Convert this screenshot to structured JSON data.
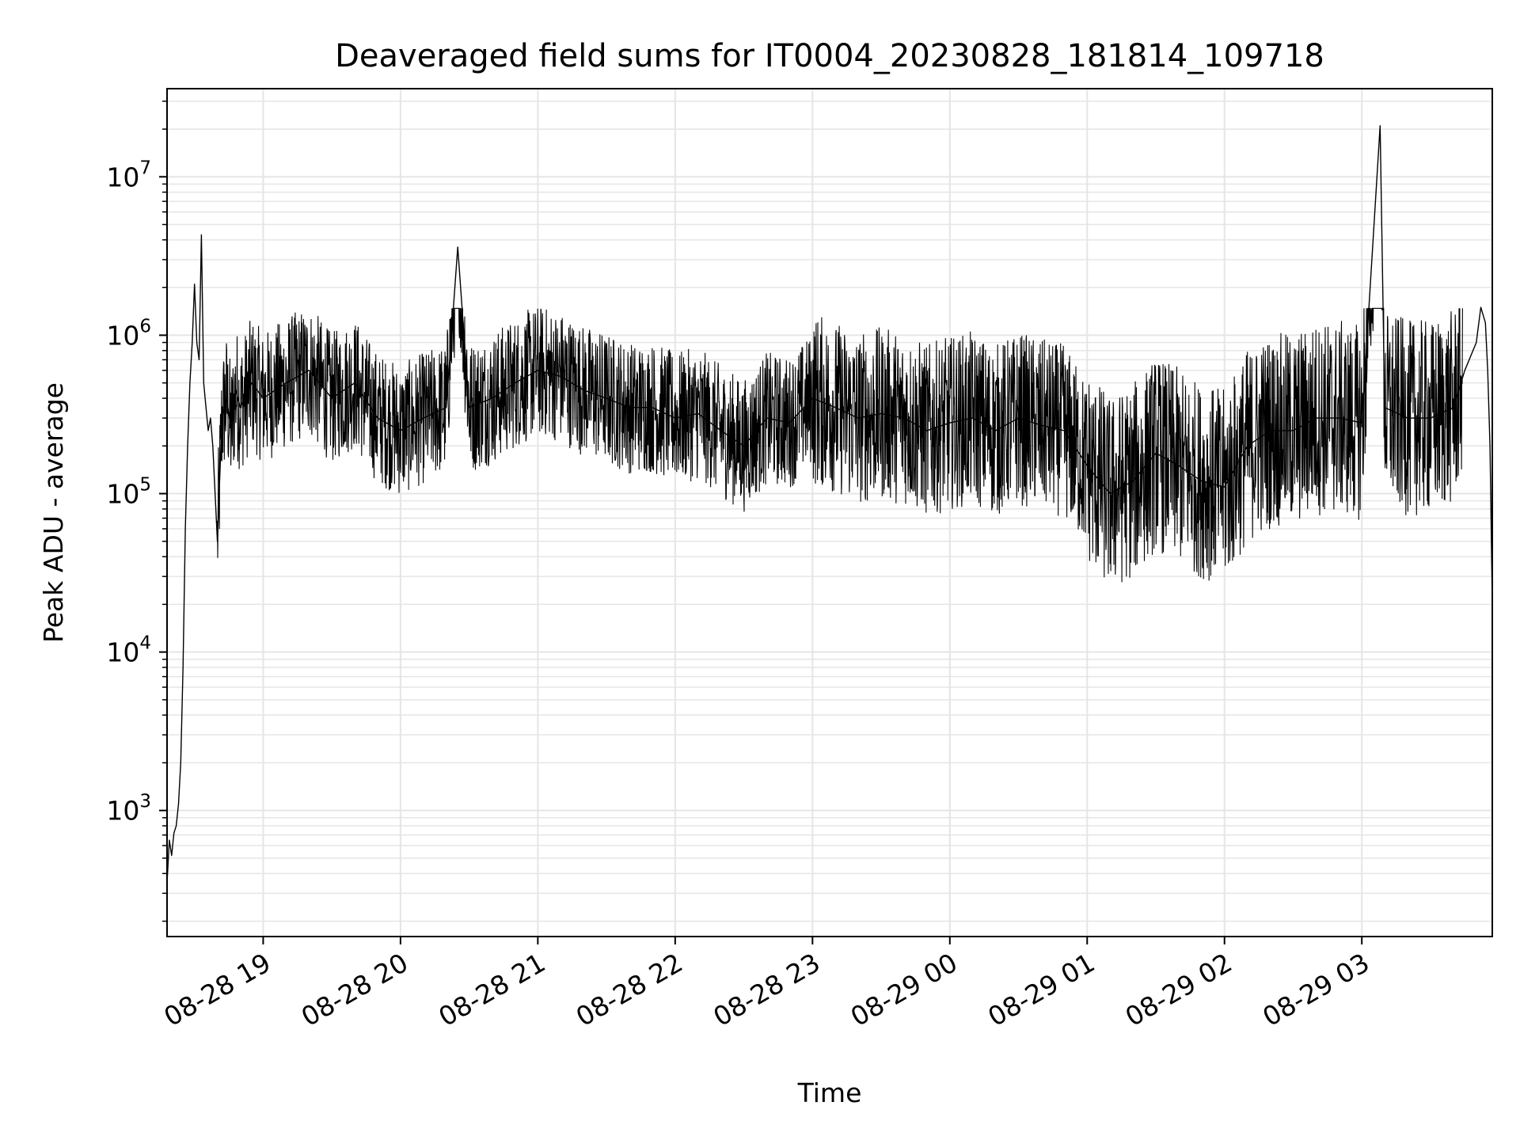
{
  "chart_data": {
    "type": "line",
    "title": "Deaveraged field sums for IT0004_20230828_181814_109718",
    "xlabel": "Time",
    "ylabel": "Peak ADU - average",
    "yscale": "log",
    "ylim": [
      160,
      36000000
    ],
    "xlim": [
      "2023-08-28 18:18",
      "2023-08-29 03:57"
    ],
    "grid": true,
    "line_color": "#000000",
    "grid_color": "#e5e5e5",
    "x_ticks": [
      {
        "time": "2023-08-28 19:00",
        "label": "08-28 19"
      },
      {
        "time": "2023-08-28 20:00",
        "label": "08-28 20"
      },
      {
        "time": "2023-08-28 21:00",
        "label": "08-28 21"
      },
      {
        "time": "2023-08-28 22:00",
        "label": "08-28 22"
      },
      {
        "time": "2023-08-28 23:00",
        "label": "08-28 23"
      },
      {
        "time": "2023-08-29 00:00",
        "label": "08-29 00"
      },
      {
        "time": "2023-08-29 01:00",
        "label": "08-29 01"
      },
      {
        "time": "2023-08-29 02:00",
        "label": "08-29 02"
      },
      {
        "time": "2023-08-29 03:00",
        "label": "08-29 03"
      }
    ],
    "y_ticks": [
      {
        "value": 1000,
        "base": "10",
        "exp": "3"
      },
      {
        "value": 10000,
        "base": "10",
        "exp": "4"
      },
      {
        "value": 100000,
        "base": "10",
        "exp": "5"
      },
      {
        "value": 1000000,
        "base": "10",
        "exp": "6"
      },
      {
        "value": 10000000,
        "base": "10",
        "exp": "7"
      }
    ],
    "series": [
      {
        "x": [
          "2023-08-28 18:18",
          "2023-08-28 18:19",
          "2023-08-28 18:20",
          "2023-08-28 18:21",
          "2023-08-28 18:22",
          "2023-08-28 18:23",
          "2023-08-28 18:24",
          "2023-08-28 18:25",
          "2023-08-28 18:26",
          "2023-08-28 18:27",
          "2023-08-28 18:28",
          "2023-08-28 18:29",
          "2023-08-28 18:30",
          "2023-08-28 18:31",
          "2023-08-28 18:32",
          "2023-08-28 18:33",
          "2023-08-28 18:34",
          "2023-08-28 18:35",
          "2023-08-28 18:36",
          "2023-08-28 18:37",
          "2023-08-28 18:38",
          "2023-08-28 18:40",
          "2023-08-28 18:42",
          "2023-08-28 18:44",
          "2023-08-28 18:46",
          "2023-08-28 18:48",
          "2023-08-28 18:50",
          "2023-08-28 18:55",
          "2023-08-28 19:00",
          "2023-08-28 19:10",
          "2023-08-28 19:20",
          "2023-08-28 19:30",
          "2023-08-28 19:40",
          "2023-08-28 19:50",
          "2023-08-28 20:00",
          "2023-08-28 20:10",
          "2023-08-28 20:20",
          "2023-08-28 20:25",
          "2023-08-28 20:30",
          "2023-08-28 20:40",
          "2023-08-28 20:50",
          "2023-08-28 21:00",
          "2023-08-28 21:10",
          "2023-08-28 21:20",
          "2023-08-28 21:30",
          "2023-08-28 21:40",
          "2023-08-28 21:50",
          "2023-08-28 22:00",
          "2023-08-28 22:10",
          "2023-08-28 22:20",
          "2023-08-28 22:30",
          "2023-08-28 22:40",
          "2023-08-28 22:50",
          "2023-08-28 23:00",
          "2023-08-28 23:10",
          "2023-08-28 23:20",
          "2023-08-28 23:30",
          "2023-08-28 23:40",
          "2023-08-28 23:50",
          "2023-08-29 00:00",
          "2023-08-29 00:10",
          "2023-08-29 00:20",
          "2023-08-29 00:30",
          "2023-08-29 00:40",
          "2023-08-29 00:50",
          "2023-08-29 01:00",
          "2023-08-29 01:10",
          "2023-08-29 01:20",
          "2023-08-29 01:30",
          "2023-08-29 01:40",
          "2023-08-29 01:50",
          "2023-08-29 02:00",
          "2023-08-29 02:10",
          "2023-08-29 02:20",
          "2023-08-29 02:30",
          "2023-08-29 02:40",
          "2023-08-29 02:50",
          "2023-08-29 03:00",
          "2023-08-29 03:08",
          "2023-08-29 03:10",
          "2023-08-29 03:20",
          "2023-08-29 03:30",
          "2023-08-29 03:40",
          "2023-08-29 03:45",
          "2023-08-29 03:50",
          "2023-08-29 03:52",
          "2023-08-29 03:54",
          "2023-08-29 03:55",
          "2023-08-29 03:56",
          "2023-08-29 03:57"
        ],
        "y": [
          350,
          650,
          520,
          720,
          800,
          1100,
          2000,
          8000,
          60000,
          200000,
          500000,
          900000,
          2100000,
          900000,
          700000,
          4300000,
          500000,
          350000,
          250000,
          300000,
          200000,
          50000,
          300000,
          400000,
          250000,
          450000,
          350000,
          500000,
          400000,
          500000,
          600000,
          400000,
          500000,
          300000,
          250000,
          300000,
          350000,
          3600000,
          350000,
          400000,
          500000,
          600000,
          550000,
          450000,
          400000,
          350000,
          350000,
          300000,
          320000,
          250000,
          200000,
          300000,
          280000,
          400000,
          350000,
          300000,
          320000,
          300000,
          250000,
          280000,
          300000,
          250000,
          300000,
          270000,
          250000,
          150000,
          100000,
          120000,
          180000,
          150000,
          120000,
          110000,
          200000,
          250000,
          250000,
          300000,
          300000,
          280000,
          21000000,
          350000,
          300000,
          300000,
          350000,
          600000,
          900000,
          1500000,
          1200000,
          600000,
          200000,
          20000
        ]
      }
    ]
  }
}
